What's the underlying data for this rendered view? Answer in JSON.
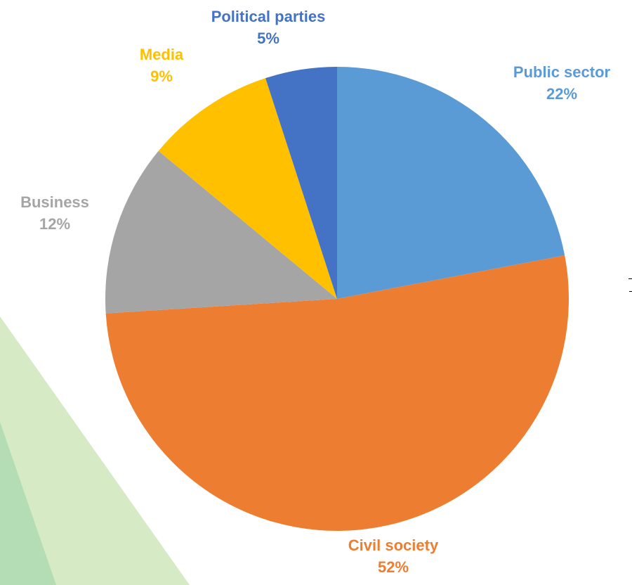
{
  "chart_data": {
    "type": "pie",
    "slices": [
      {
        "label": "Public sector",
        "value": 22,
        "value_label": "22%",
        "color": "#5B9BD5"
      },
      {
        "label": "Civil society",
        "value": 52,
        "value_label": "52%",
        "color": "#ED7D31"
      },
      {
        "label": "Business",
        "value": 12,
        "value_label": "12%",
        "color": "#A5A5A5"
      },
      {
        "label": "Media",
        "value": 9,
        "value_label": "9%",
        "color": "#FFC000"
      },
      {
        "label": "Political parties",
        "value": 5,
        "value_label": "5%",
        "color": "#4472C4"
      }
    ],
    "start": "12 o'clock",
    "direction": "clockwise",
    "legend": "none"
  },
  "decor": {
    "light_green": "#D6EAC6",
    "mid_green": "#B4DDB5"
  }
}
